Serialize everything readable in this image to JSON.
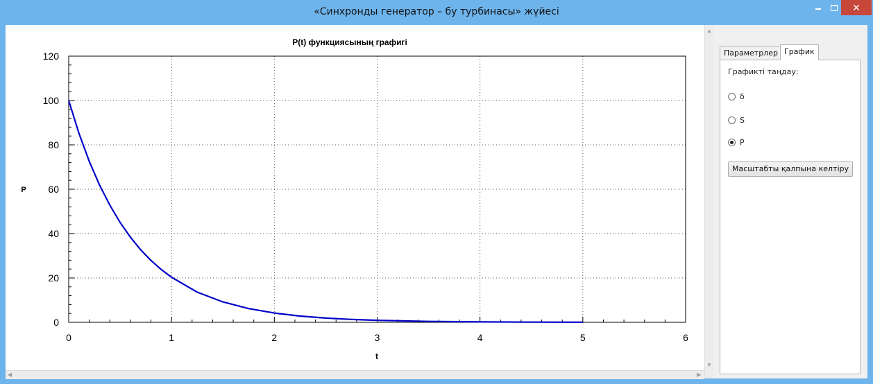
{
  "window": {
    "title": "«Синхронды генератор – бу турбинасы» жүйесі",
    "close_glyph": "✕"
  },
  "chart_data": {
    "type": "line",
    "title": "P(t) функциясының графигі",
    "xlabel": "t",
    "ylabel": "P",
    "xlim": [
      0,
      6
    ],
    "ylim": [
      0,
      120
    ],
    "xticks": [
      "0",
      "1",
      "2",
      "3",
      "4",
      "5",
      "6"
    ],
    "yticks": [
      "0",
      "20",
      "40",
      "60",
      "80",
      "100",
      "120"
    ],
    "grid": true,
    "series": [
      {
        "color": "#0000c8",
        "x": [
          0,
          0.1,
          0.2,
          0.3,
          0.4,
          0.5,
          0.6,
          0.7,
          0.8,
          0.9,
          1.0,
          1.25,
          1.5,
          1.75,
          2.0,
          2.25,
          2.5,
          2.75,
          3.0,
          3.5,
          4.0,
          4.5,
          5.0
        ],
        "y": [
          100,
          85.2,
          72.6,
          61.9,
          52.8,
          45.0,
          38.4,
          32.7,
          27.9,
          23.8,
          20.3,
          13.6,
          9.2,
          6.2,
          4.2,
          2.8,
          1.9,
          1.3,
          0.9,
          0.4,
          0.2,
          0.1,
          0.05
        ]
      }
    ]
  },
  "side_panel": {
    "tabs": [
      "Параметрлер",
      "График"
    ],
    "active_tab": "График",
    "group_label": "Графикті таңдау:",
    "radios": [
      {
        "label": "δ",
        "checked": false
      },
      {
        "label": "S",
        "checked": false
      },
      {
        "label": "P",
        "checked": true
      }
    ],
    "reset_button": "Масштабты қалпына келтіру"
  }
}
